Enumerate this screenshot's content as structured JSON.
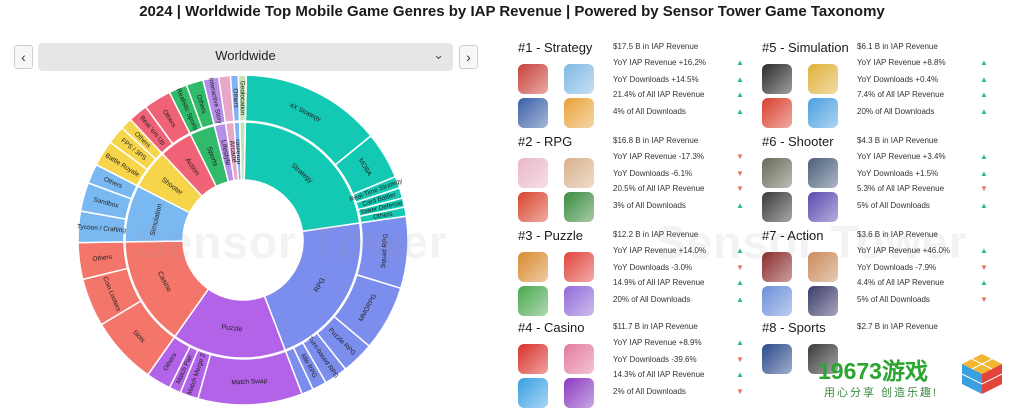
{
  "title": "2024 | Worldwide Top Mobile Game Genres by IAP Revenue | Powered by Sensor Tower Game Taxonomy",
  "region": {
    "selected": "Worldwide",
    "prev_icon": "‹",
    "next_icon": "›",
    "dropdown_icon": "⌄"
  },
  "watermark": "Sensor Tower",
  "center_watermark": "Sensor Tower",
  "logo": {
    "number": "19673游戏",
    "slogan": "用心分享 创造乐趣!"
  },
  "chart_data": {
    "type": "sunburst",
    "inner": [
      {
        "name": "Strategy",
        "color": "#14c9b4",
        "value": 17.5
      },
      {
        "name": "RPG",
        "color": "#7b8ded",
        "value": 16.8
      },
      {
        "name": "Puzzle",
        "color": "#b263e8",
        "value": 12.2
      },
      {
        "name": "Casino",
        "color": "#f4766a",
        "value": 11.7
      },
      {
        "name": "Simulation",
        "color": "#7ab8f2",
        "value": 6.1
      },
      {
        "name": "Shooter",
        "color": "#f7d54a",
        "value": 4.3
      },
      {
        "name": "Action",
        "color": "#f06276",
        "value": 3.6
      },
      {
        "name": "Sports",
        "color": "#31ba6a",
        "value": 2.7
      },
      {
        "name": "Lifestyle",
        "color": "#b68de8",
        "value": 1.2
      },
      {
        "name": "Arcade",
        "color": "#e8a6c8",
        "value": 0.9
      },
      {
        "name": "Tabletop",
        "color": "#7fb3f5",
        "value": 0.6
      },
      {
        "name": "",
        "color": "#c6e3b4",
        "value": 0.6
      }
    ],
    "outer": [
      {
        "name": "4X Strategy",
        "color": "#14c9b4",
        "value": 10.8
      },
      {
        "name": "MOBA",
        "color": "#14c9b4",
        "value": 3.6
      },
      {
        "name": "Real-Time Strategy",
        "color": "#14c9b4",
        "value": 0.9
      },
      {
        "name": "Card Battler",
        "color": "#14c9b4",
        "value": 0.8
      },
      {
        "name": "Tower Defense",
        "color": "#14c9b4",
        "value": 0.7
      },
      {
        "name": "Others",
        "color": "#14c9b4",
        "value": 0.7
      },
      {
        "name": "Squad RPG",
        "color": "#7b8ded",
        "value": 5.5
      },
      {
        "name": "MMORPG",
        "color": "#7b8ded",
        "value": 5.0
      },
      {
        "name": "Puzzle RPG",
        "color": "#7b8ded",
        "value": 2.5
      },
      {
        "name": "Turn-based RPG",
        "color": "#7b8ded",
        "value": 1.8
      },
      {
        "name": "Idle RPG",
        "color": "#7b8ded",
        "value": 1.1
      },
      {
        "name": "",
        "color": "#7b8ded",
        "value": 0.9
      },
      {
        "name": "Match Swap",
        "color": "#b263e8",
        "value": 8.0
      },
      {
        "name": "Match Merge 2",
        "color": "#b263e8",
        "value": 1.4
      },
      {
        "name": "Match Pair",
        "color": "#b263e8",
        "value": 0.9
      },
      {
        "name": "Others",
        "color": "#b263e8",
        "value": 1.9
      },
      {
        "name": "Slots",
        "color": "#f4766a",
        "value": 5.2
      },
      {
        "name": "Coin Looters",
        "color": "#f4766a",
        "value": 3.7
      },
      {
        "name": "Others",
        "color": "#f4766a",
        "value": 2.8
      },
      {
        "name": "Tycoon / Crafting",
        "color": "#7ab8f2",
        "value": 2.4
      },
      {
        "name": "Sandbox",
        "color": "#7ab8f2",
        "value": 2.2
      },
      {
        "name": "Others",
        "color": "#7ab8f2",
        "value": 1.5
      },
      {
        "name": "Battle Royale",
        "color": "#f7d54a",
        "value": 2.0
      },
      {
        "name": "FPS / 3PS",
        "color": "#f7d54a",
        "value": 1.4
      },
      {
        "name": "Others",
        "color": "#f7d54a",
        "value": 0.9
      },
      {
        "name": "Beat 'em Up",
        "color": "#f06276",
        "value": 1.5
      },
      {
        "name": "Others",
        "color": "#f06276",
        "value": 2.1
      },
      {
        "name": "Realistic Sports",
        "color": "#31ba6a",
        "value": 1.4
      },
      {
        "name": "Others",
        "color": "#31ba6a",
        "value": 1.3
      },
      {
        "name": "Interactive Story",
        "color": "#b68de8",
        "value": 1.2
      },
      {
        "name": "",
        "color": "#e8a6c8",
        "value": 0.9
      },
      {
        "name": "Others",
        "color": "#7fb3f5",
        "value": 0.6
      },
      {
        "name": "Geolocation",
        "color": "#c6e3b4",
        "value": 0.6
      }
    ]
  },
  "genres": [
    {
      "rank_title": "#1 - Strategy",
      "revenue": "$17.5 B in IAP Revenue",
      "stats": [
        {
          "text": "YoY IAP Revenue +16.2%",
          "trend": "up"
        },
        {
          "text": "YoY Downloads +14.5%",
          "trend": "up"
        },
        {
          "text": "21.4% of All IAP Revenue",
          "trend": "up"
        },
        {
          "text": "4% of All Downloads",
          "trend": "up"
        }
      ],
      "thumb_colors": [
        "#c9413a",
        "#7fb9e3",
        "#3a5fa8",
        "#e9a23a"
      ]
    },
    {
      "rank_title": "#2 - RPG",
      "revenue": "$16.8 B in IAP Revenue",
      "stats": [
        {
          "text": "YoY IAP Revenue -17.3%",
          "trend": "down"
        },
        {
          "text": "YoY Downloads -6.1%",
          "trend": "down"
        },
        {
          "text": "20.5% of All IAP Revenue",
          "trend": "down"
        },
        {
          "text": "3% of All Downloads",
          "trend": "up"
        }
      ],
      "thumb_colors": [
        "#e9b6c9",
        "#d9b08c",
        "#d9452e",
        "#3a8a3f"
      ]
    },
    {
      "rank_title": "#3 - Puzzle",
      "revenue": "$12.2 B in IAP Revenue",
      "stats": [
        {
          "text": "YoY IAP Revenue +14.0%",
          "trend": "up"
        },
        {
          "text": "YoY Downloads -3.0%",
          "trend": "down"
        },
        {
          "text": "14.9% of All IAP Revenue",
          "trend": "up"
        },
        {
          "text": "20% of All Downloads",
          "trend": "up"
        }
      ],
      "thumb_colors": [
        "#d98a2e",
        "#e0443a",
        "#4aa84e",
        "#8f6ad9"
      ]
    },
    {
      "rank_title": "#4 - Casino",
      "revenue": "$11.7 B in IAP Revenue",
      "stats": [
        {
          "text": "YoY IAP Revenue +8.9%",
          "trend": "up"
        },
        {
          "text": "YoY Downloads -39.6%",
          "trend": "down"
        },
        {
          "text": "14.3% of All IAP Revenue",
          "trend": "up"
        },
        {
          "text": "2% of All Downloads",
          "trend": "down"
        }
      ],
      "thumb_colors": [
        "#d9302a",
        "#e37aa0",
        "#3a9fe3",
        "#8a3ac0"
      ]
    },
    {
      "rank_title": "#5 - Simulation",
      "revenue": "$6.1 B in IAP Revenue",
      "stats": [
        {
          "text": "YoY IAP Revenue +8.8%",
          "trend": "up"
        },
        {
          "text": "YoY Downloads +0.4%",
          "trend": "up"
        },
        {
          "text": "7.4% of All IAP Revenue",
          "trend": "up"
        },
        {
          "text": "20% of All Downloads",
          "trend": "up"
        }
      ],
      "thumb_colors": [
        "#2a2a2a",
        "#e0b13a",
        "#d9402e",
        "#4a9fe0"
      ]
    },
    {
      "rank_title": "#6 - Shooter",
      "revenue": "$4.3 B in IAP Revenue",
      "stats": [
        {
          "text": "YoY IAP Revenue +3.4%",
          "trend": "up"
        },
        {
          "text": "YoY Downloads +1.5%",
          "trend": "up"
        },
        {
          "text": "5.3% of All IAP Revenue",
          "trend": "down"
        },
        {
          "text": "5% of All Downloads",
          "trend": "up"
        }
      ],
      "thumb_colors": [
        "#6a6a58",
        "#4a5f7a",
        "#3a3a3a",
        "#5a4ab0"
      ]
    },
    {
      "rank_title": "#7 - Action",
      "revenue": "$3.6 B in IAP Revenue",
      "stats": [
        {
          "text": "YoY IAP Revenue +46.0%",
          "trend": "up"
        },
        {
          "text": "YoY Downloads -7.9%",
          "trend": "down"
        },
        {
          "text": "4.4% of All IAP Revenue",
          "trend": "up"
        },
        {
          "text": "5% of All Downloads",
          "trend": "down"
        }
      ],
      "thumb_colors": [
        "#8a2a2a",
        "#c98a5a",
        "#6a8fd9",
        "#3a3a6a"
      ]
    },
    {
      "rank_title": "#8 - Sports",
      "revenue": "$2.7 B in IAP Revenue",
      "stats": [],
      "thumb_colors": [
        "#2a4a8a",
        "#3a3a3a"
      ]
    }
  ]
}
